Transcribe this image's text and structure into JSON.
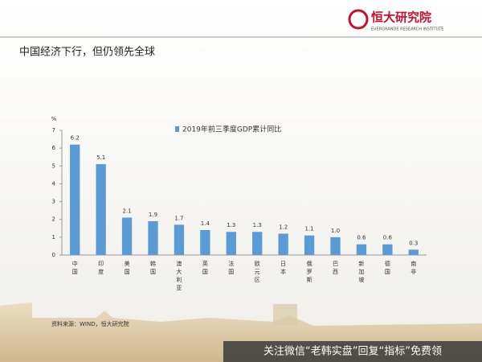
{
  "header": {
    "logo": "恒大研究院",
    "logo_subtitle": "EVERGRANDE RESEARCH INSTITUTE"
  },
  "slide_title": "中国经济下行，但仍领先全球",
  "chart_data": {
    "type": "bar",
    "unit": "%",
    "categories": [
      "中国",
      "印度",
      "美国",
      "韩国",
      "澳大利亚",
      "英国",
      "法国",
      "欧元区",
      "日本",
      "俄罗斯",
      "巴西",
      "新加坡",
      "德国",
      "南非"
    ],
    "series": [
      {
        "name": "2019年前三季度GDP累计同比",
        "color": "#5b9bd5",
        "values": [
          6.2,
          5.1,
          2.1,
          1.9,
          1.7,
          1.4,
          1.3,
          1.3,
          1.2,
          1.1,
          1.0,
          0.6,
          0.6,
          0.3
        ],
        "value_labels": [
          "6.2",
          "5.1",
          "2.1",
          "1.9",
          "1.7",
          "1.4",
          "1.3",
          "1.3",
          "1.2",
          "1.1",
          "1.0",
          "0.6",
          "0.6",
          "0.3"
        ]
      }
    ],
    "ylim": [
      0,
      7
    ],
    "yticks": [
      0,
      1,
      2,
      3,
      4,
      5,
      6,
      7
    ],
    "legend": "top"
  },
  "source": "资料来源：WIND，恒大研究院",
  "banner": "关注微信“老韩实盘”回复“指标”免费领"
}
